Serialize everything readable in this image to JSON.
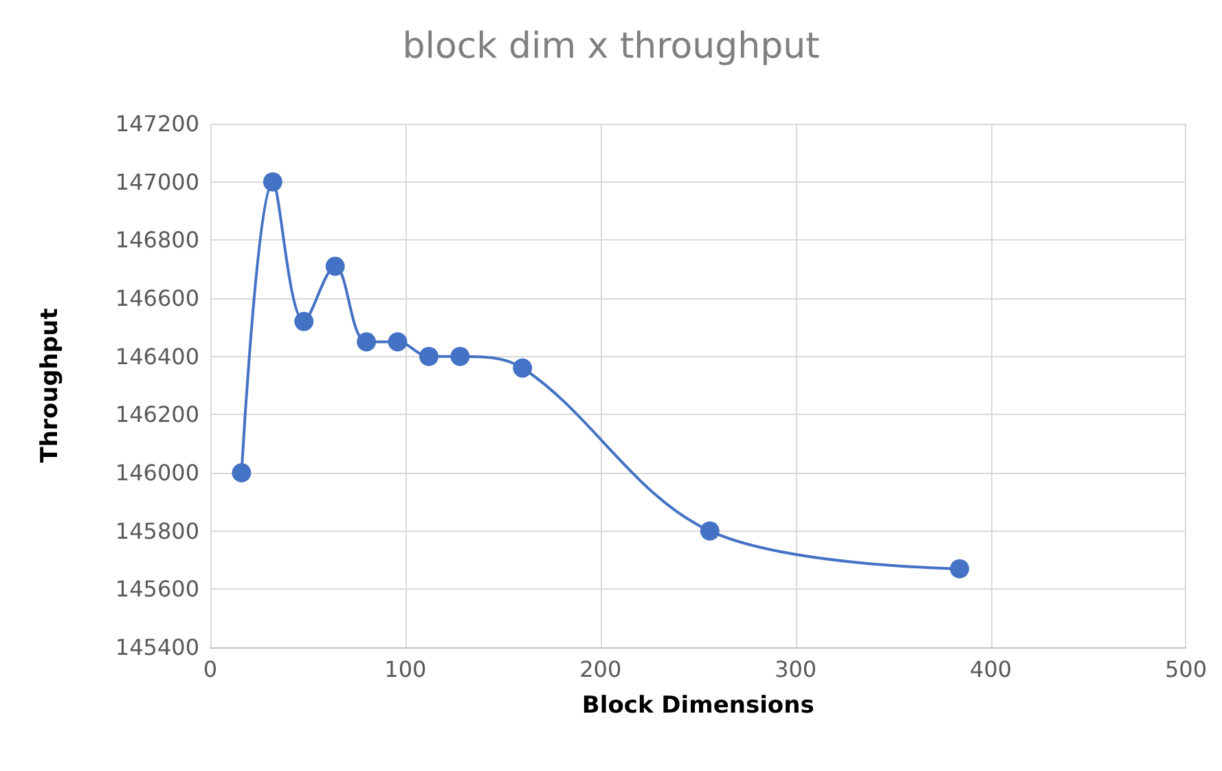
{
  "chart_data": {
    "type": "line",
    "title": "block dim x throughput",
    "xlabel": "Block Dimensions",
    "ylabel": "Throughput",
    "x": [
      16,
      32,
      48,
      64,
      80,
      96,
      112,
      128,
      160,
      256,
      384
    ],
    "series": [
      {
        "color": "#4472c4",
        "values": [
          146000,
          147000,
          146520,
          146710,
          146450,
          146450,
          146400,
          146400,
          146360,
          145800,
          145670
        ]
      }
    ],
    "xlim": [
      0,
      500
    ],
    "xticks": [
      0,
      100,
      200,
      300,
      400,
      500
    ],
    "ylim": [
      145400,
      147200
    ],
    "yticks": [
      145400,
      145600,
      145800,
      146000,
      146200,
      146400,
      146600,
      146800,
      147000,
      147200
    ],
    "grid": true,
    "marker": "circle",
    "line_style": "solid"
  }
}
